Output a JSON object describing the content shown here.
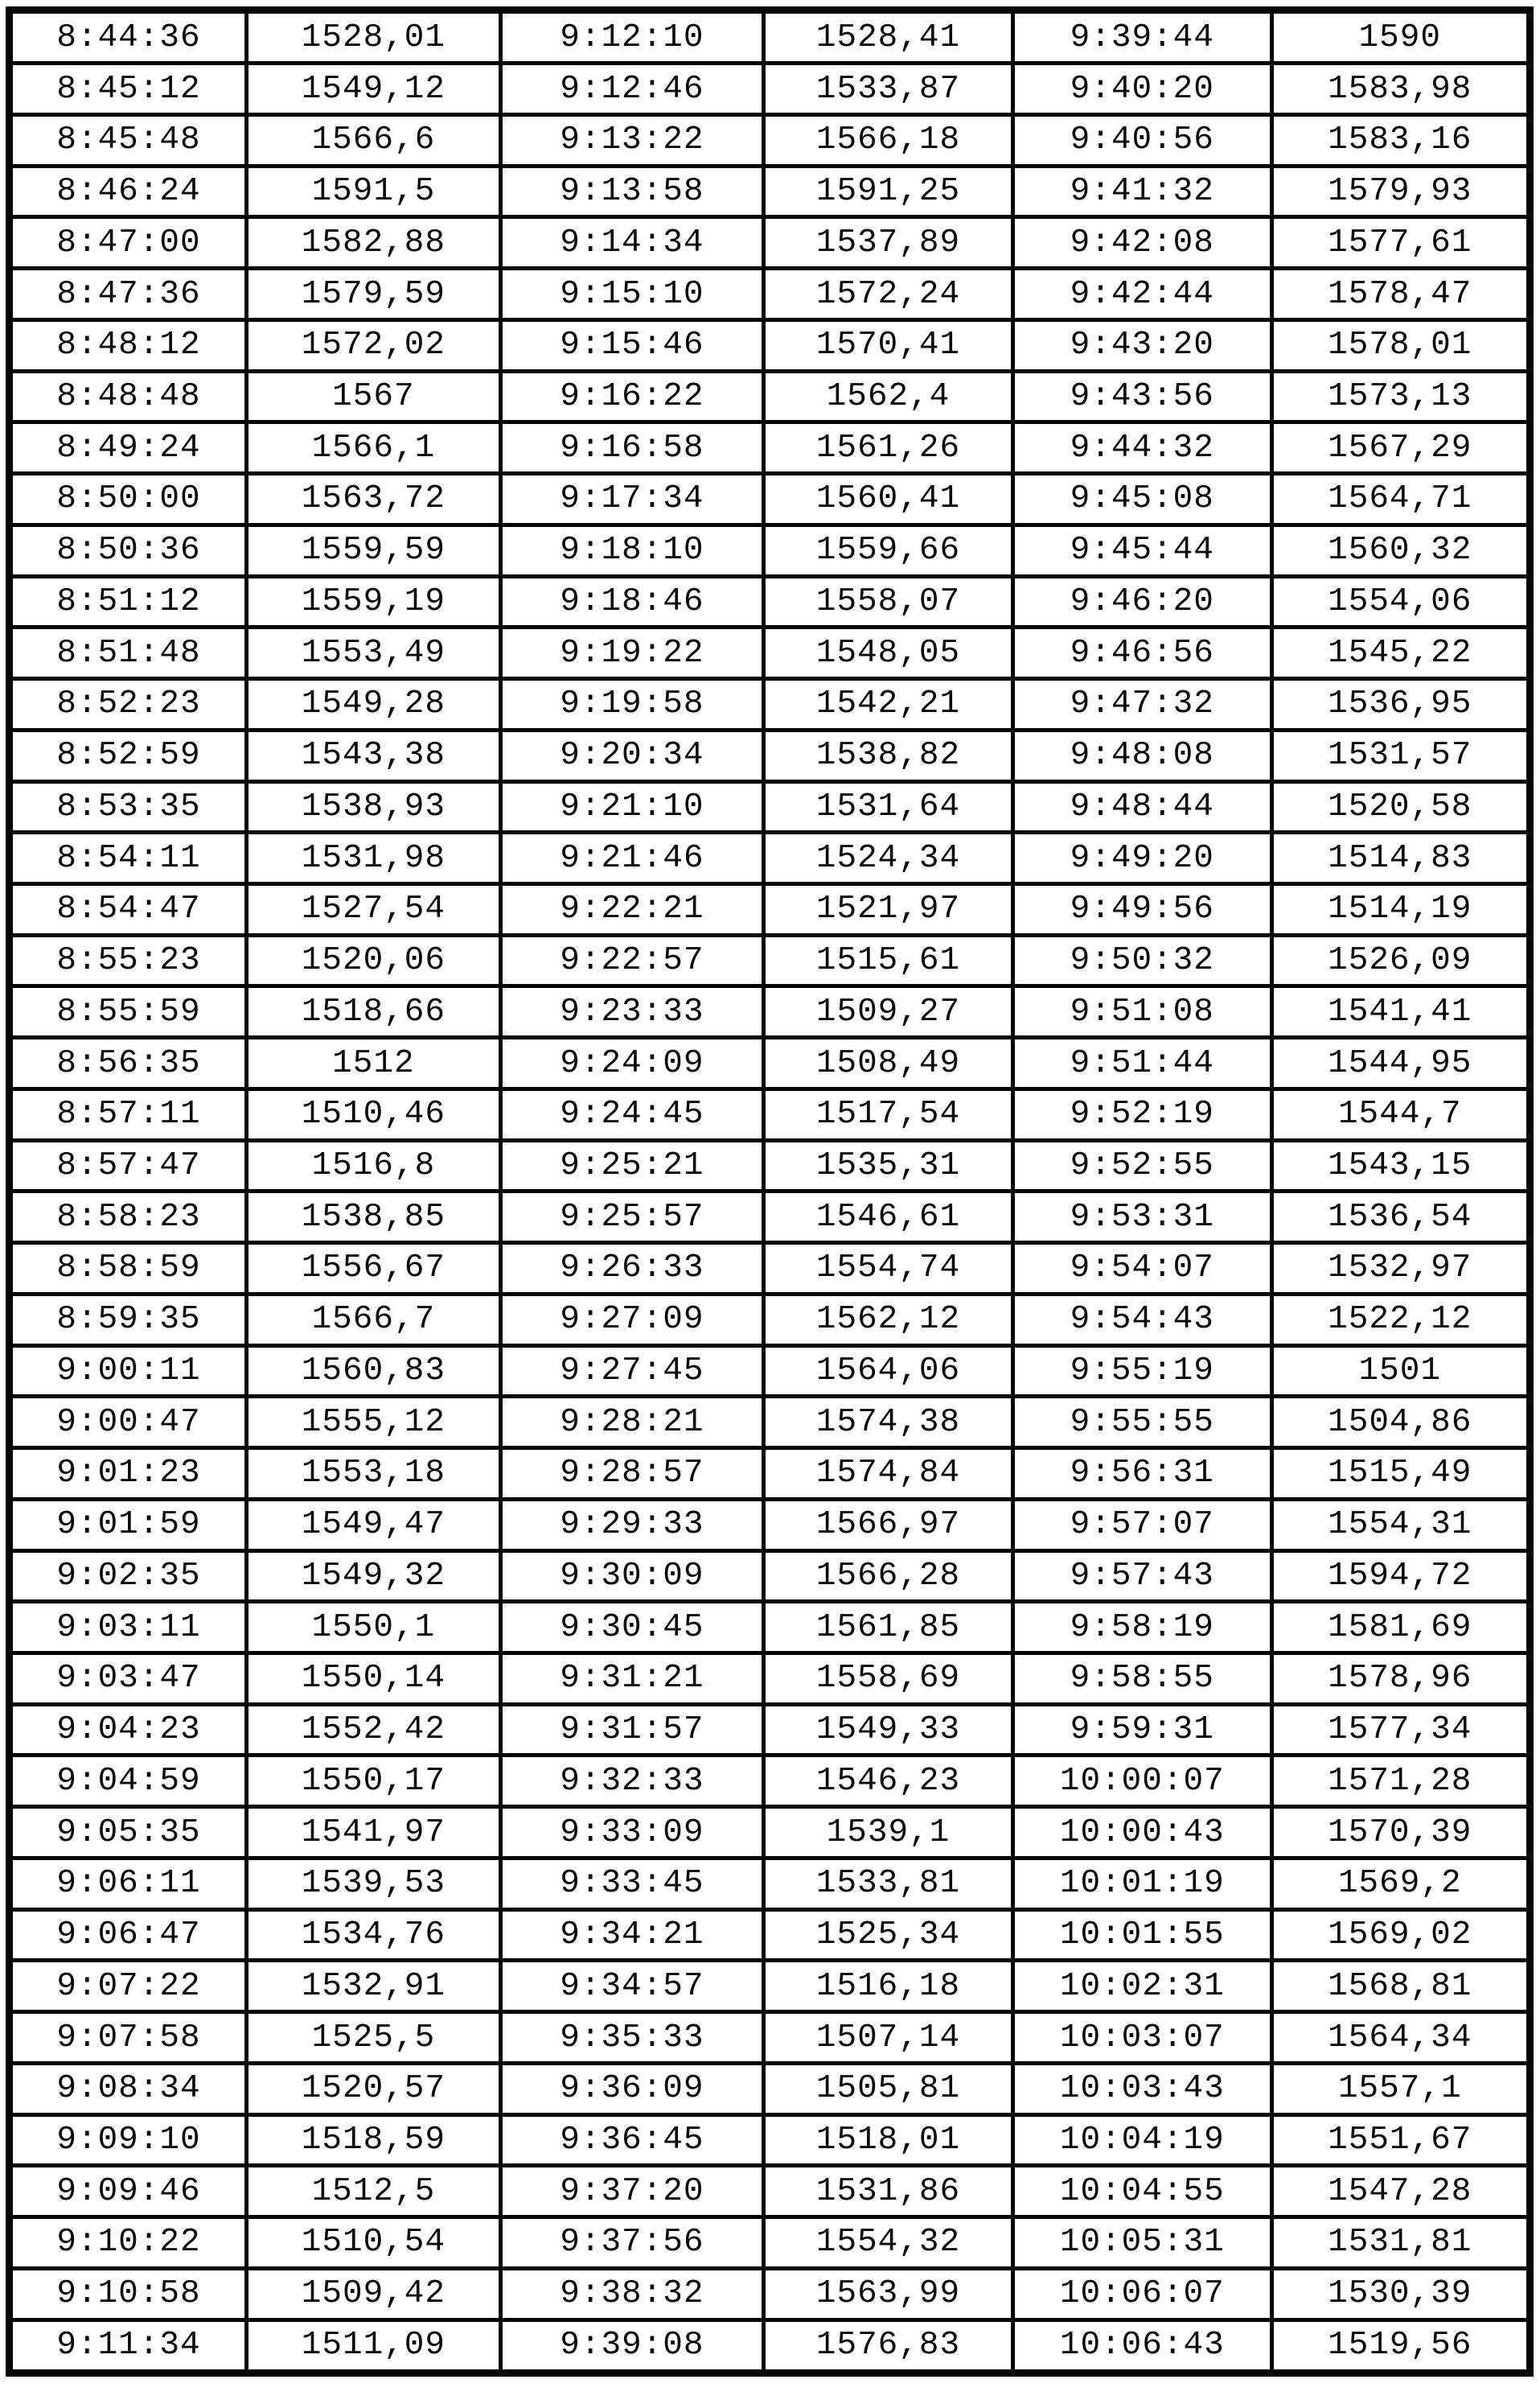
{
  "colors": {
    "ink": "#090909",
    "paper": "#ffffff"
  },
  "table": {
    "rows": [
      [
        "8:44:36",
        "1528,01",
        "9:12:10",
        "1528,41",
        "9:39:44",
        "1590"
      ],
      [
        "8:45:12",
        "1549,12",
        "9:12:46",
        "1533,87",
        "9:40:20",
        "1583,98"
      ],
      [
        "8:45:48",
        "1566,6",
        "9:13:22",
        "1566,18",
        "9:40:56",
        "1583,16"
      ],
      [
        "8:46:24",
        "1591,5",
        "9:13:58",
        "1591,25",
        "9:41:32",
        "1579,93"
      ],
      [
        "8:47:00",
        "1582,88",
        "9:14:34",
        "1537,89",
        "9:42:08",
        "1577,61"
      ],
      [
        "8:47:36",
        "1579,59",
        "9:15:10",
        "1572,24",
        "9:42:44",
        "1578,47"
      ],
      [
        "8:48:12",
        "1572,02",
        "9:15:46",
        "1570,41",
        "9:43:20",
        "1578,01"
      ],
      [
        "8:48:48",
        "1567",
        "9:16:22",
        "1562,4",
        "9:43:56",
        "1573,13"
      ],
      [
        "8:49:24",
        "1566,1",
        "9:16:58",
        "1561,26",
        "9:44:32",
        "1567,29"
      ],
      [
        "8:50:00",
        "1563,72",
        "9:17:34",
        "1560,41",
        "9:45:08",
        "1564,71"
      ],
      [
        "8:50:36",
        "1559,59",
        "9:18:10",
        "1559,66",
        "9:45:44",
        "1560,32"
      ],
      [
        "8:51:12",
        "1559,19",
        "9:18:46",
        "1558,07",
        "9:46:20",
        "1554,06"
      ],
      [
        "8:51:48",
        "1553,49",
        "9:19:22",
        "1548,05",
        "9:46:56",
        "1545,22"
      ],
      [
        "8:52:23",
        "1549,28",
        "9:19:58",
        "1542,21",
        "9:47:32",
        "1536,95"
      ],
      [
        "8:52:59",
        "1543,38",
        "9:20:34",
        "1538,82",
        "9:48:08",
        "1531,57"
      ],
      [
        "8:53:35",
        "1538,93",
        "9:21:10",
        "1531,64",
        "9:48:44",
        "1520,58"
      ],
      [
        "8:54:11",
        "1531,98",
        "9:21:46",
        "1524,34",
        "9:49:20",
        "1514,83"
      ],
      [
        "8:54:47",
        "1527,54",
        "9:22:21",
        "1521,97",
        "9:49:56",
        "1514,19"
      ],
      [
        "8:55:23",
        "1520,06",
        "9:22:57",
        "1515,61",
        "9:50:32",
        "1526,09"
      ],
      [
        "8:55:59",
        "1518,66",
        "9:23:33",
        "1509,27",
        "9:51:08",
        "1541,41"
      ],
      [
        "8:56:35",
        "1512",
        "9:24:09",
        "1508,49",
        "9:51:44",
        "1544,95"
      ],
      [
        "8:57:11",
        "1510,46",
        "9:24:45",
        "1517,54",
        "9:52:19",
        "1544,7"
      ],
      [
        "8:57:47",
        "1516,8",
        "9:25:21",
        "1535,31",
        "9:52:55",
        "1543,15"
      ],
      [
        "8:58:23",
        "1538,85",
        "9:25:57",
        "1546,61",
        "9:53:31",
        "1536,54"
      ],
      [
        "8:58:59",
        "1556,67",
        "9:26:33",
        "1554,74",
        "9:54:07",
        "1532,97"
      ],
      [
        "8:59:35",
        "1566,7",
        "9:27:09",
        "1562,12",
        "9:54:43",
        "1522,12"
      ],
      [
        "9:00:11",
        "1560,83",
        "9:27:45",
        "1564,06",
        "9:55:19",
        "1501"
      ],
      [
        "9:00:47",
        "1555,12",
        "9:28:21",
        "1574,38",
        "9:55:55",
        "1504,86"
      ],
      [
        "9:01:23",
        "1553,18",
        "9:28:57",
        "1574,84",
        "9:56:31",
        "1515,49"
      ],
      [
        "9:01:59",
        "1549,47",
        "9:29:33",
        "1566,97",
        "9:57:07",
        "1554,31"
      ],
      [
        "9:02:35",
        "1549,32",
        "9:30:09",
        "1566,28",
        "9:57:43",
        "1594,72"
      ],
      [
        "9:03:11",
        "1550,1",
        "9:30:45",
        "1561,85",
        "9:58:19",
        "1581,69"
      ],
      [
        "9:03:47",
        "1550,14",
        "9:31:21",
        "1558,69",
        "9:58:55",
        "1578,96"
      ],
      [
        "9:04:23",
        "1552,42",
        "9:31:57",
        "1549,33",
        "9:59:31",
        "1577,34"
      ],
      [
        "9:04:59",
        "1550,17",
        "9:32:33",
        "1546,23",
        "10:00:07",
        "1571,28"
      ],
      [
        "9:05:35",
        "1541,97",
        "9:33:09",
        "1539,1",
        "10:00:43",
        "1570,39"
      ],
      [
        "9:06:11",
        "1539,53",
        "9:33:45",
        "1533,81",
        "10:01:19",
        "1569,2"
      ],
      [
        "9:06:47",
        "1534,76",
        "9:34:21",
        "1525,34",
        "10:01:55",
        "1569,02"
      ],
      [
        "9:07:22",
        "1532,91",
        "9:34:57",
        "1516,18",
        "10:02:31",
        "1568,81"
      ],
      [
        "9:07:58",
        "1525,5",
        "9:35:33",
        "1507,14",
        "10:03:07",
        "1564,34"
      ],
      [
        "9:08:34",
        "1520,57",
        "9:36:09",
        "1505,81",
        "10:03:43",
        "1557,1"
      ],
      [
        "9:09:10",
        "1518,59",
        "9:36:45",
        "1518,01",
        "10:04:19",
        "1551,67"
      ],
      [
        "9:09:46",
        "1512,5",
        "9:37:20",
        "1531,86",
        "10:04:55",
        "1547,28"
      ],
      [
        "9:10:22",
        "1510,54",
        "9:37:56",
        "1554,32",
        "10:05:31",
        "1531,81"
      ],
      [
        "9:10:58",
        "1509,42",
        "9:38:32",
        "1563,99",
        "10:06:07",
        "1530,39"
      ],
      [
        "9:11:34",
        "1511,09",
        "9:39:08",
        "1576,83",
        "10:06:43",
        "1519,56"
      ]
    ]
  }
}
